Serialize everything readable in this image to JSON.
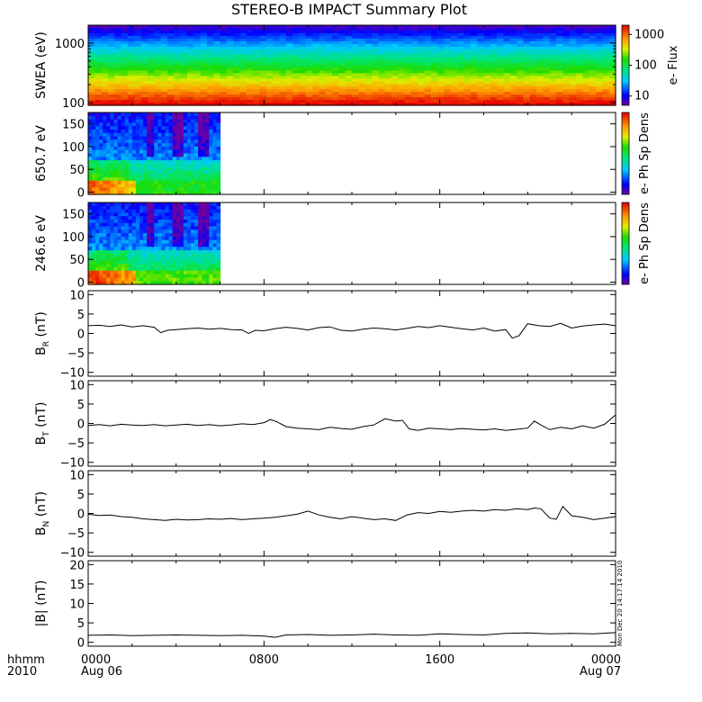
{
  "title": "STEREO-B IMPACT Summary Plot",
  "timestamp": "Mon Dec 20 14:17:14 2010",
  "x_axis": {
    "corner_labels": [
      "hhmm",
      "2010"
    ],
    "ticks": [
      {
        "hour": 0,
        "time": "0000",
        "date": "Aug 06"
      },
      {
        "hour": 8,
        "time": "0800",
        "date": ""
      },
      {
        "hour": 16,
        "time": "1600",
        "date": ""
      },
      {
        "hour": 24,
        "time": "0000",
        "date": "Aug 07"
      }
    ],
    "range_hours": [
      0,
      24
    ]
  },
  "chart_data": [
    {
      "type": "heatmap",
      "panel": "swea",
      "ylabel": "SWEA (eV)",
      "yscale": "log",
      "ylim": [
        90,
        2000
      ],
      "y_ticks": [
        {
          "v": 100,
          "label": "100"
        },
        {
          "v": 1000,
          "label": "1000"
        }
      ],
      "colorbar": {
        "label": "e- Flux",
        "scale": "log",
        "range": [
          5,
          2000
        ],
        "ticks": [
          {
            "v": 10,
            "label": "10"
          },
          {
            "v": 100,
            "label": "100"
          },
          {
            "v": 1000,
            "label": "1000"
          }
        ]
      },
      "description_bands": [
        {
          "energy_eV": 1800,
          "level": 0.1
        },
        {
          "energy_eV": 1200,
          "level": 0.3
        },
        {
          "energy_eV": 700,
          "level": 0.45
        },
        {
          "energy_eV": 450,
          "level": 0.6
        },
        {
          "energy_eV": 300,
          "level": 0.75
        },
        {
          "energy_eV": 200,
          "level": 0.88
        },
        {
          "energy_eV": 120,
          "level": 0.97
        }
      ]
    },
    {
      "type": "heatmap",
      "panel": "pad650",
      "ylabel": "650.7 eV",
      "ylim": [
        -5,
        175
      ],
      "y_ticks": [
        {
          "v": 0,
          "label": "0"
        },
        {
          "v": 50,
          "label": "50"
        },
        {
          "v": 100,
          "label": "100"
        },
        {
          "v": 150,
          "label": "150"
        }
      ],
      "data_xlim_hours": [
        0,
        6
      ],
      "colorbar": {
        "label": "e- Ph Sp Dens"
      }
    },
    {
      "type": "heatmap",
      "panel": "pad246",
      "ylabel": "246.6 eV",
      "ylim": [
        -5,
        175
      ],
      "y_ticks": [
        {
          "v": 0,
          "label": "0"
        },
        {
          "v": 50,
          "label": "50"
        },
        {
          "v": 100,
          "label": "100"
        },
        {
          "v": 150,
          "label": "150"
        }
      ],
      "data_xlim_hours": [
        0,
        6
      ],
      "colorbar": {
        "label": "e- Ph Sp Dens"
      }
    },
    {
      "type": "line",
      "panel": "br",
      "ylabel": "B",
      "ylabel_sub": "R",
      "ylabel_unit": "(nT)",
      "ylim": [
        -11,
        11
      ],
      "y_ticks": [
        {
          "v": -10,
          "label": "−10"
        },
        {
          "v": -5,
          "label": "−5"
        },
        {
          "v": 0,
          "label": "0"
        },
        {
          "v": 5,
          "label": "5"
        },
        {
          "v": 10,
          "label": "10"
        }
      ],
      "x": [
        0,
        0.5,
        1,
        1.5,
        2,
        2.5,
        3,
        3.3,
        3.6,
        4,
        4.5,
        5,
        5.5,
        6,
        6.5,
        7,
        7.3,
        7.6,
        8,
        8.5,
        9,
        9.5,
        10,
        10.5,
        11,
        11.5,
        12,
        12.5,
        13,
        13.5,
        14,
        14.5,
        15,
        15.5,
        16,
        16.5,
        17,
        17.5,
        18,
        18.5,
        19,
        19.3,
        19.6,
        20,
        20.5,
        21,
        21.5,
        22,
        22.5,
        23,
        23.5,
        24
      ],
      "values": [
        2,
        2.1,
        1.8,
        2.2,
        1.7,
        2.0,
        1.6,
        0.2,
        0.8,
        1.0,
        1.2,
        1.4,
        1.1,
        1.3,
        1.0,
        0.9,
        0.0,
        0.8,
        0.7,
        1.2,
        1.6,
        1.3,
        0.9,
        1.5,
        1.7,
        0.8,
        0.6,
        1.1,
        1.4,
        1.2,
        0.9,
        1.3,
        1.8,
        1.5,
        2.0,
        1.6,
        1.2,
        0.9,
        1.4,
        0.6,
        1.0,
        -1.2,
        -0.6,
        2.5,
        2.0,
        1.8,
        2.6,
        1.4,
        1.9,
        2.2,
        2.4,
        2.0
      ]
    },
    {
      "type": "line",
      "panel": "bt",
      "ylabel": "B",
      "ylabel_sub": "T",
      "ylabel_unit": "(nT)",
      "ylim": [
        -11,
        11
      ],
      "y_ticks": [
        {
          "v": -10,
          "label": "−10"
        },
        {
          "v": -5,
          "label": "−5"
        },
        {
          "v": 0,
          "label": "0"
        },
        {
          "v": 5,
          "label": "5"
        },
        {
          "v": 10,
          "label": "10"
        }
      ],
      "x": [
        0,
        0.5,
        1,
        1.5,
        2,
        2.5,
        3,
        3.5,
        4,
        4.5,
        5,
        5.5,
        6,
        6.5,
        7,
        7.5,
        8,
        8.3,
        8.6,
        9,
        9.5,
        10,
        10.5,
        11,
        11.5,
        12,
        12.5,
        13,
        13.5,
        14,
        14.3,
        14.6,
        15,
        15.5,
        16,
        16.5,
        17,
        17.5,
        18,
        18.5,
        19,
        19.5,
        20,
        20.3,
        20.6,
        21,
        21.5,
        22,
        22.5,
        23,
        23.5,
        24
      ],
      "values": [
        -0.5,
        -0.3,
        -0.6,
        -0.2,
        -0.4,
        -0.5,
        -0.3,
        -0.6,
        -0.4,
        -0.2,
        -0.5,
        -0.3,
        -0.6,
        -0.4,
        -0.1,
        -0.3,
        0.2,
        1.0,
        0.4,
        -0.8,
        -1.2,
        -1.4,
        -1.6,
        -1.0,
        -1.3,
        -1.5,
        -0.8,
        -0.4,
        1.2,
        0.6,
        0.8,
        -1.4,
        -1.8,
        -1.2,
        -1.4,
        -1.6,
        -1.3,
        -1.5,
        -1.7,
        -1.4,
        -1.8,
        -1.5,
        -1.2,
        0.6,
        -0.4,
        -1.6,
        -1.0,
        -1.4,
        -0.6,
        -1.2,
        -0.2,
        2.2
      ]
    },
    {
      "type": "line",
      "panel": "bn",
      "ylabel": "B",
      "ylabel_sub": "N",
      "ylabel_unit": "(nT)",
      "ylim": [
        -11,
        11
      ],
      "y_ticks": [
        {
          "v": -10,
          "label": "−10"
        },
        {
          "v": -5,
          "label": "−5"
        },
        {
          "v": 0,
          "label": "0"
        },
        {
          "v": 5,
          "label": "5"
        },
        {
          "v": 10,
          "label": "10"
        }
      ],
      "x": [
        0,
        0.5,
        1,
        1.5,
        2,
        2.5,
        3,
        3.5,
        4,
        4.5,
        5,
        5.5,
        6,
        6.5,
        7,
        7.5,
        8,
        8.5,
        9,
        9.5,
        10,
        10.5,
        11,
        11.5,
        12,
        12.5,
        13,
        13.5,
        14,
        14.5,
        15,
        15.5,
        16,
        16.5,
        17,
        17.5,
        18,
        18.5,
        19,
        19.5,
        20,
        20.3,
        20.6,
        21,
        21.3,
        21.6,
        22,
        22.5,
        23,
        23.5,
        24
      ],
      "values": [
        -0.2,
        -0.5,
        -0.4,
        -0.8,
        -1.0,
        -1.4,
        -1.6,
        -1.8,
        -1.5,
        -1.7,
        -1.6,
        -1.4,
        -1.5,
        -1.3,
        -1.6,
        -1.4,
        -1.2,
        -1.0,
        -0.6,
        -0.2,
        0.6,
        -0.4,
        -1.0,
        -1.4,
        -0.8,
        -1.2,
        -1.6,
        -1.4,
        -1.8,
        -0.4,
        0.2,
        0.0,
        0.5,
        0.3,
        0.6,
        0.8,
        0.6,
        1.0,
        0.8,
        1.2,
        1.0,
        1.4,
        1.2,
        -1.2,
        -1.5,
        1.8,
        -0.6,
        -1.0,
        -1.6,
        -1.2,
        -0.8
      ]
    },
    {
      "type": "line",
      "panel": "bmag",
      "ylabel": "|B| (nT)",
      "ylim": [
        -1,
        21
      ],
      "y_ticks": [
        {
          "v": 0,
          "label": "0"
        },
        {
          "v": 5,
          "label": "5"
        },
        {
          "v": 10,
          "label": "10"
        },
        {
          "v": 15,
          "label": "15"
        },
        {
          "v": 20,
          "label": "20"
        }
      ],
      "x": [
        0,
        1,
        2,
        3,
        4,
        5,
        6,
        7,
        8,
        8.5,
        9,
        10,
        11,
        12,
        13,
        14,
        15,
        16,
        17,
        18,
        19,
        20,
        21,
        22,
        23,
        24
      ],
      "values": [
        1.8,
        1.9,
        1.7,
        1.8,
        1.9,
        1.8,
        1.7,
        1.8,
        1.6,
        1.3,
        1.9,
        2.0,
        1.8,
        1.9,
        2.1,
        1.9,
        1.8,
        2.2,
        2.0,
        1.9,
        2.3,
        2.4,
        2.2,
        2.3,
        2.2,
        2.5
      ]
    }
  ]
}
